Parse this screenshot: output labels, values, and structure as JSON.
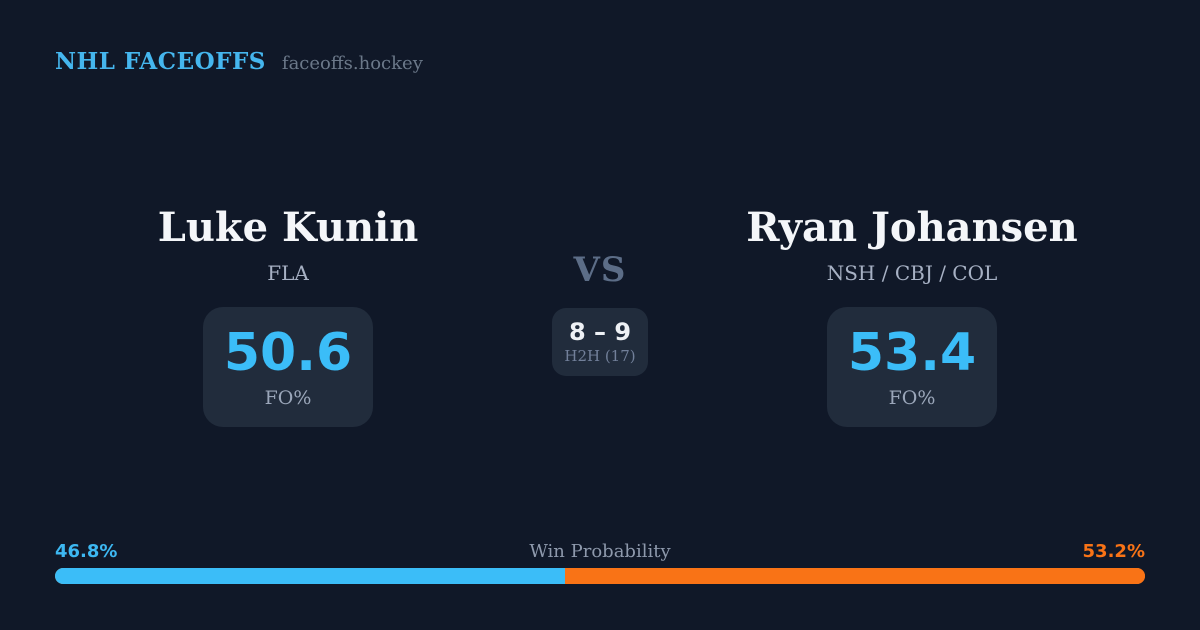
{
  "header": {
    "brand": "NHL FACEOFFS",
    "site": "faceoffs.hockey"
  },
  "matchup": {
    "player_left": {
      "name": "Luke Kunin",
      "teams": "FLA",
      "stat_value": "50.6",
      "stat_label": "FO%"
    },
    "player_right": {
      "name": "Ryan Johansen",
      "teams": "NSH / CBJ / COL",
      "stat_value": "53.4",
      "stat_label": "FO%"
    },
    "center": {
      "vs_label": "VS",
      "h2h_score": "8 – 9",
      "h2h_label": "H2H (17)"
    }
  },
  "win_probability": {
    "label": "Win Probability",
    "left_pct_text": "46.8%",
    "right_pct_text": "53.2%",
    "left_value": 46.8,
    "right_value": 53.2
  },
  "colors": {
    "background": "#101828",
    "card_bg": "#212c3c",
    "accent_blue": "#3bbdf8",
    "accent_orange": "#f97316",
    "brand_blue": "#45b6ee"
  }
}
